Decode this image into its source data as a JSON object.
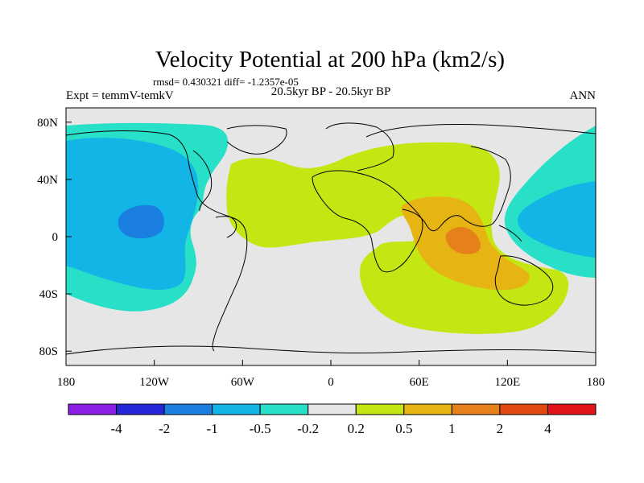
{
  "chart_data": {
    "type": "contour-map",
    "title": "Velocity Potential at 200 hPa (km2/s)",
    "stats": "rmsd= 0.430321 diff= -1.2357e-05",
    "left_label": "Expt = temmV-temkV",
    "center_label": "20.5kyr BP - 20.5kyr BP",
    "right_label": "ANN",
    "x_ticks": [
      "180",
      "120W",
      "60W",
      "0",
      "60E",
      "120E",
      "180"
    ],
    "y_ticks": [
      "80N",
      "40N",
      "0",
      "40S",
      "80S"
    ],
    "xlim": [
      -180,
      180
    ],
    "ylim": [
      -90,
      90
    ],
    "colorbar": {
      "colors": [
        "#8c1ee6",
        "#2626d9",
        "#1a7fe0",
        "#12b5e6",
        "#28e0c8",
        "#e6e6e6",
        "#c4e613",
        "#e6b413",
        "#e6801a",
        "#e04a12",
        "#e0141a"
      ],
      "labels": [
        "-4",
        "-2",
        "-1",
        "-0.5",
        "-0.2",
        "0.2",
        "0.5",
        "1",
        "2",
        "4"
      ]
    },
    "regions": [
      {
        "level": "0.2 to 0.5",
        "color": "#c4e613",
        "center": [
          60,
          10
        ]
      },
      {
        "level": "0.5 to 1",
        "color": "#e6b413",
        "center": [
          100,
          -10
        ]
      },
      {
        "level": "1 to 2",
        "color": "#e6801a",
        "center": [
          92,
          0
        ]
      },
      {
        "level": "-0.5 to -0.2",
        "color": "#28e0c8",
        "center": [
          -140,
          30
        ]
      },
      {
        "level": "-1 to -0.5",
        "color": "#12b5e6",
        "center": [
          -140,
          10
        ]
      },
      {
        "level": "-2 to -1",
        "color": "#1a7fe0",
        "center": [
          -136,
          10
        ]
      }
    ]
  }
}
